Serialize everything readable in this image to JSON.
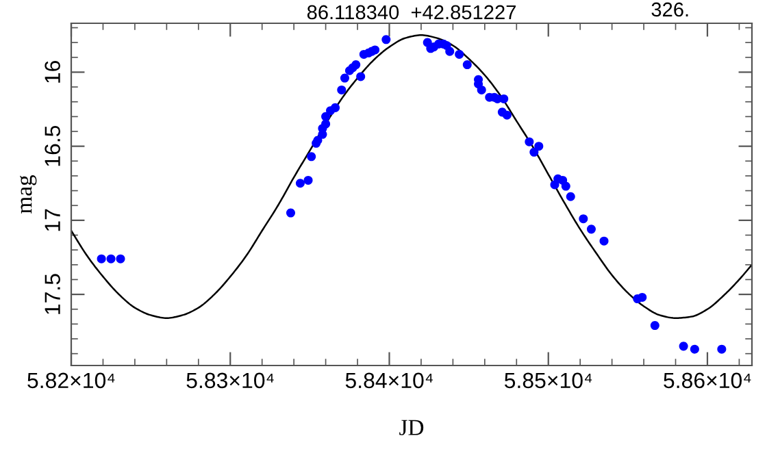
{
  "chart_data": {
    "type": "scatter",
    "title": "86.118340  +42.851227",
    "xlabel": "JD",
    "ylabel": "mag",
    "annotations": [
      "326."
    ],
    "xlim": [
      58200,
      58628
    ],
    "ylim": [
      17.98,
      15.67
    ],
    "xticks": [
      {
        "value": 58200,
        "label": "5.82×10⁴"
      },
      {
        "value": 58300,
        "label": "5.83×10⁴"
      },
      {
        "value": 58400,
        "label": "5.84×10⁴"
      },
      {
        "value": 58500,
        "label": "5.85×10⁴"
      },
      {
        "value": 58600,
        "label": "5.86×10⁴"
      }
    ],
    "yticks": [
      16,
      16.5,
      17,
      17.5
    ],
    "grid": false,
    "legend": false,
    "series": [
      {
        "color": "#0000ff",
        "marker": "circle",
        "x": [
          58219,
          58225,
          58231,
          58338,
          58344,
          58349,
          58351,
          58354,
          58355,
          58358,
          58358,
          58360,
          58360,
          58363,
          58366,
          58370,
          58372,
          58375,
          58377,
          58379,
          58382,
          58384,
          58387,
          58389,
          58391,
          58398,
          58424,
          58426,
          58428,
          58431,
          58434,
          58436,
          58438,
          58444,
          58449,
          58456,
          58456,
          58458,
          58463,
          58466,
          58468,
          58472,
          58471,
          58474,
          58488,
          58491,
          58494,
          58504,
          58506,
          58509,
          58511,
          58514,
          58522,
          58527,
          58535,
          58556,
          58559,
          58567,
          58585,
          58592,
          58609
        ],
        "values": [
          17.26,
          17.26,
          17.26,
          16.95,
          16.75,
          16.73,
          16.57,
          16.48,
          16.46,
          16.42,
          16.38,
          16.35,
          16.3,
          16.26,
          16.24,
          16.12,
          16.04,
          15.99,
          15.97,
          15.95,
          16.03,
          15.88,
          15.87,
          15.86,
          15.85,
          15.78,
          15.8,
          15.84,
          15.83,
          15.81,
          15.81,
          15.82,
          15.86,
          15.88,
          15.95,
          16.05,
          16.08,
          16.12,
          16.17,
          16.17,
          16.18,
          16.18,
          16.27,
          16.29,
          16.47,
          16.54,
          16.5,
          16.76,
          16.72,
          16.73,
          16.77,
          16.84,
          16.99,
          17.06,
          17.14,
          17.53,
          17.52,
          17.71,
          17.85,
          17.87,
          17.87
        ]
      },
      {
        "type": "line",
        "color": "#000000",
        "marker": "none",
        "line_style": "solid",
        "x": [
          58200,
          58210,
          58220,
          58230,
          58240,
          58250,
          58260,
          58270,
          58280,
          58290,
          58300,
          58310,
          58320,
          58330,
          58340,
          58350,
          58360,
          58370,
          58380,
          58390,
          58400,
          58410,
          58420,
          58430,
          58440,
          58450,
          58460,
          58470,
          58480,
          58490,
          58500,
          58510,
          58520,
          58530,
          58540,
          58550,
          58560,
          58570,
          58580,
          58590,
          58600,
          58610,
          58620,
          58628
        ],
        "values": [
          17.07,
          17.24,
          17.38,
          17.5,
          17.59,
          17.64,
          17.66,
          17.64,
          17.59,
          17.5,
          17.38,
          17.24,
          17.07,
          16.9,
          16.71,
          16.53,
          16.35,
          16.18,
          16.04,
          15.92,
          15.83,
          15.77,
          15.75,
          15.77,
          15.82,
          15.91,
          16.02,
          16.16,
          16.33,
          16.5,
          16.69,
          16.88,
          17.06,
          17.22,
          17.37,
          17.49,
          17.58,
          17.64,
          17.66,
          17.65,
          17.6,
          17.51,
          17.4,
          17.3
        ]
      }
    ]
  }
}
